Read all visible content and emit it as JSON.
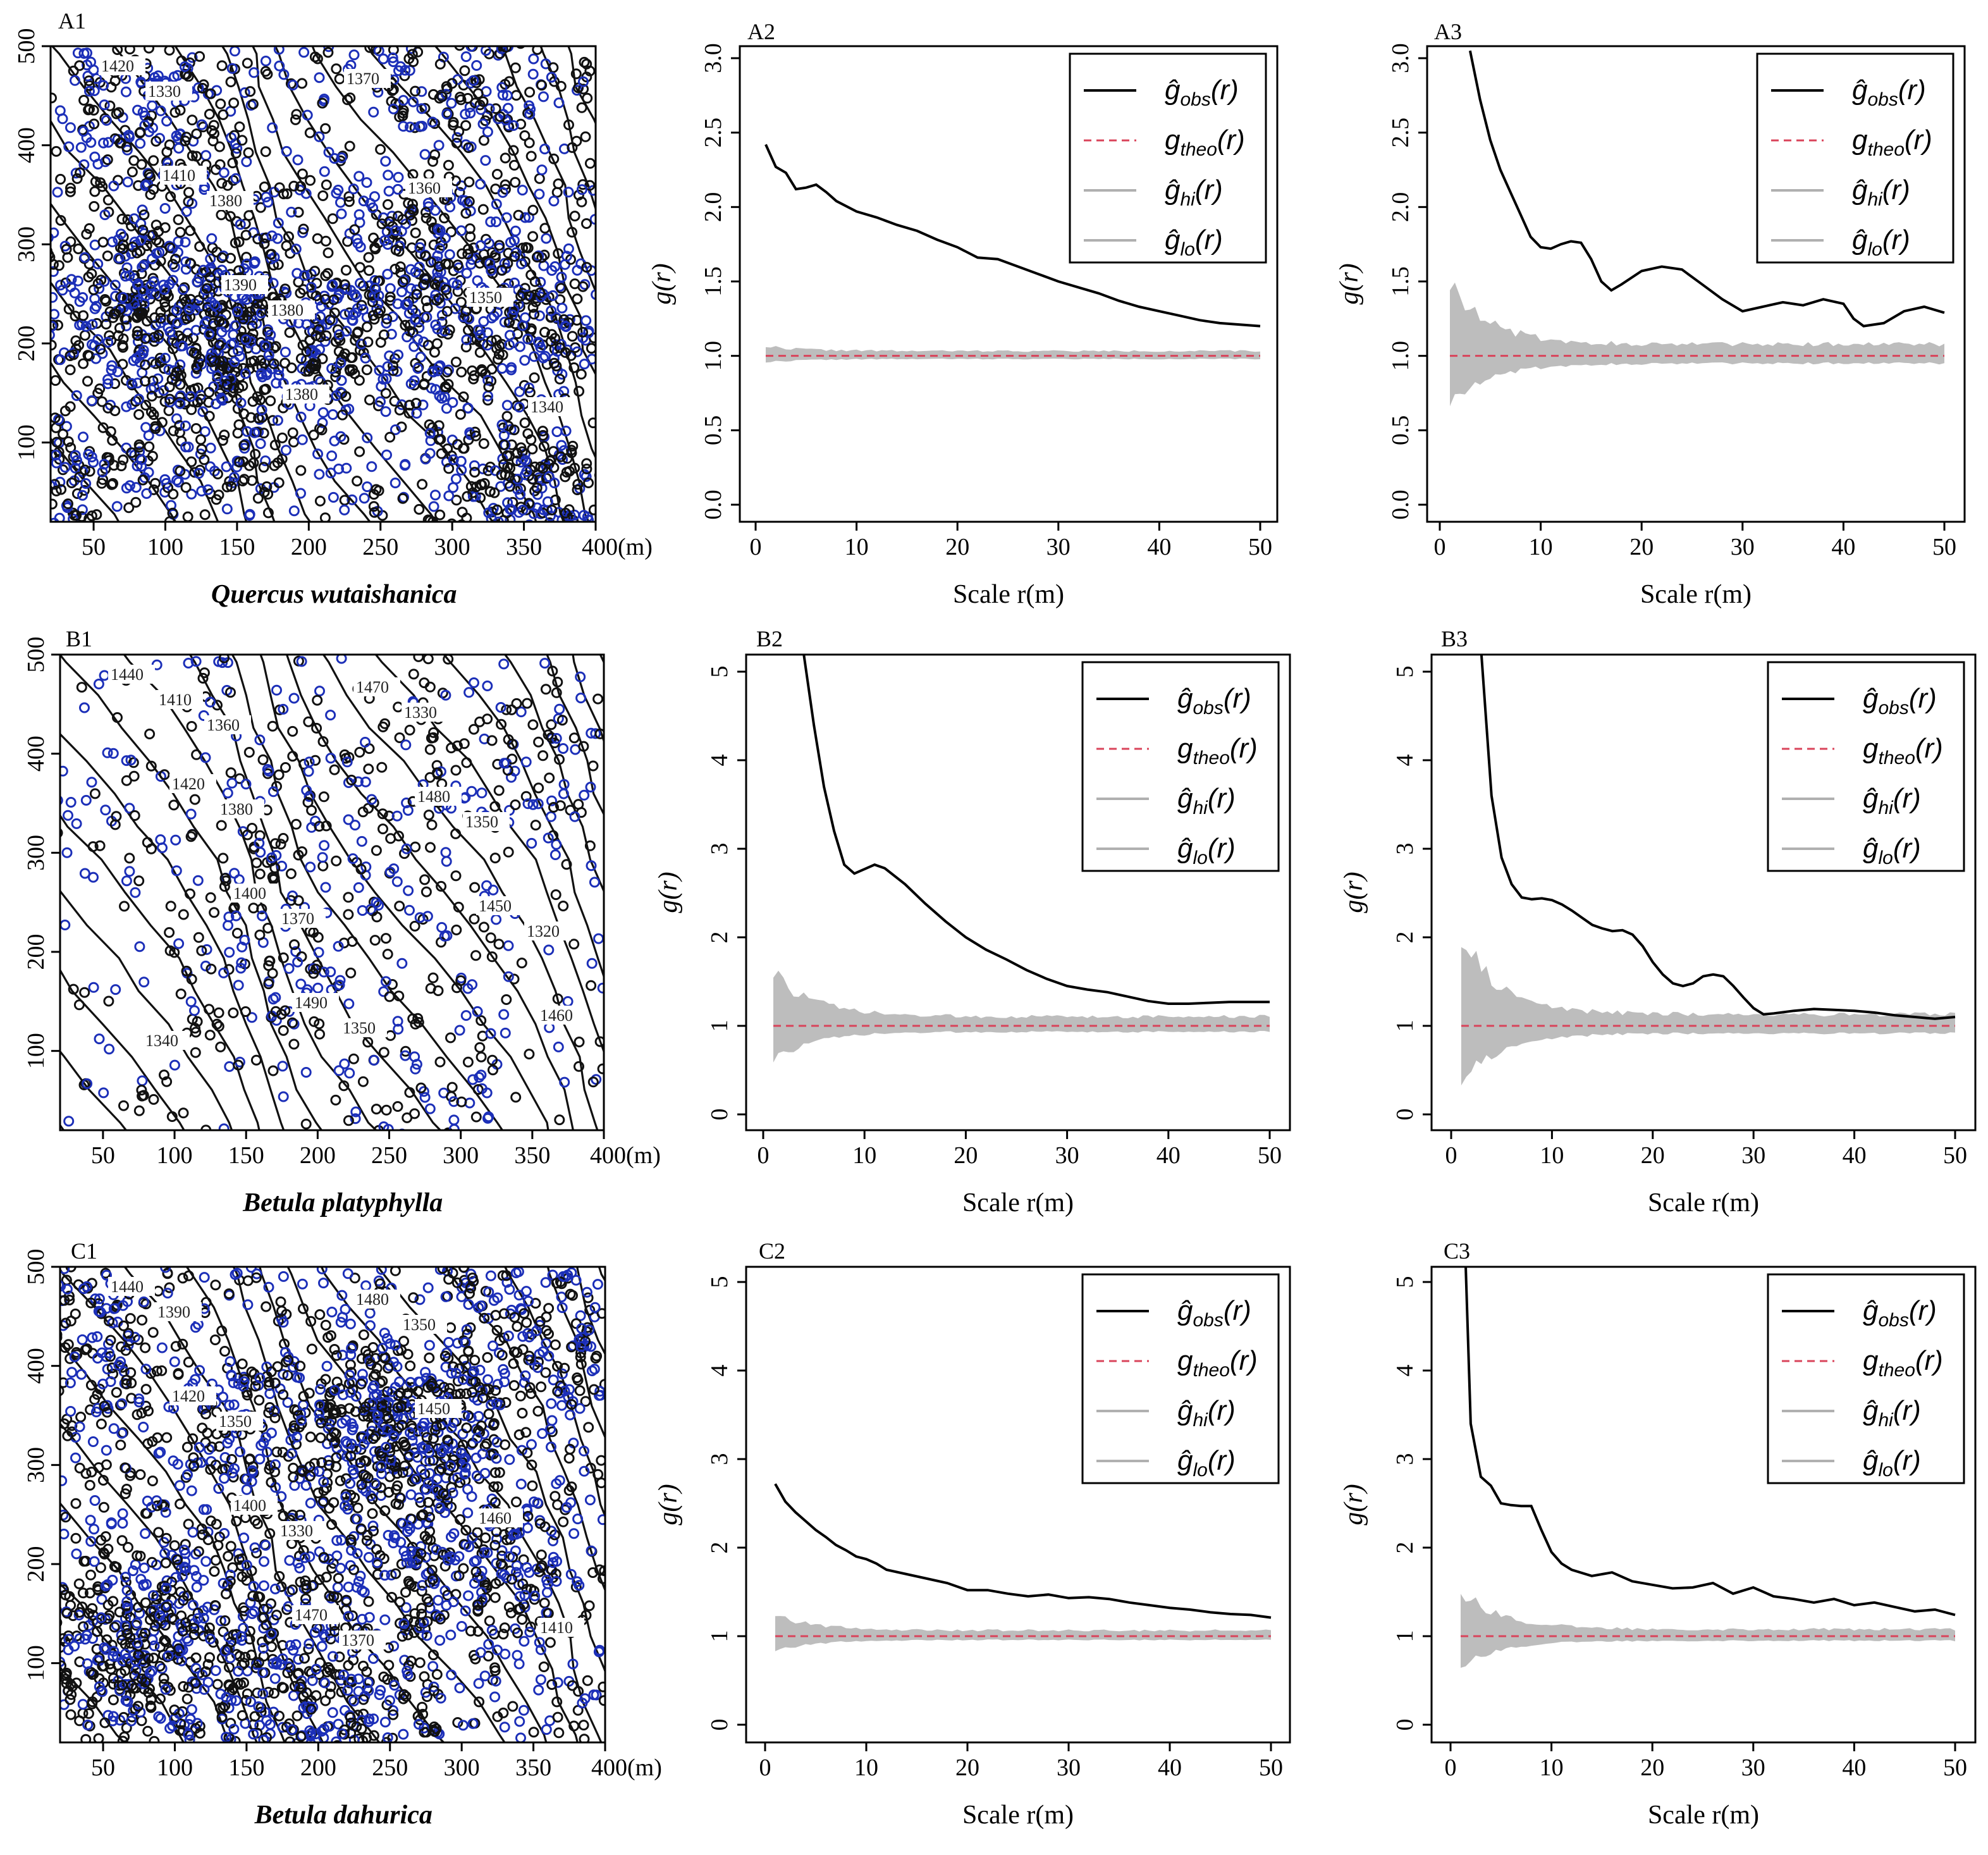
{
  "chart_data": [
    {
      "panel": "A1",
      "type": "scatter",
      "species": "Quercus wutaishanica",
      "x_ticks": [
        "50",
        "100",
        "150",
        "200",
        "250",
        "300",
        "350",
        "400(m)"
      ],
      "y_ticks": [
        "100",
        "200",
        "300",
        "400",
        "500"
      ],
      "xlim": [
        20,
        400
      ],
      "ylim": [
        20,
        500
      ],
      "contour_labels": [
        "1420",
        "1410",
        "1390",
        "1380",
        "1370",
        "1360",
        "1350",
        "1340",
        "1330",
        "1380",
        "1380"
      ],
      "point_colors": {
        "black": "#111111",
        "blue": "#1c2fb8"
      },
      "density": "high"
    },
    {
      "panel": "A2",
      "type": "line",
      "xlabel": "Scale r(m)",
      "ylabel": "g(r)",
      "xlim": [
        0,
        50
      ],
      "ylim": [
        0,
        3
      ],
      "x_ticks": [
        "0",
        "10",
        "20",
        "30",
        "40",
        "50"
      ],
      "y_ticks": [
        "0.0",
        "0.5",
        "1.0",
        "1.5",
        "2.0",
        "2.5",
        "3.0"
      ],
      "r": [
        1,
        2,
        3,
        4,
        5,
        6,
        7,
        8,
        10,
        12,
        14,
        16,
        18,
        20,
        22,
        24,
        26,
        28,
        30,
        32,
        34,
        36,
        38,
        40,
        42,
        44,
        46,
        48,
        50
      ],
      "g_obs": [
        2.42,
        2.27,
        2.23,
        2.12,
        2.13,
        2.15,
        2.1,
        2.04,
        1.97,
        1.93,
        1.88,
        1.84,
        1.78,
        1.73,
        1.66,
        1.65,
        1.6,
        1.55,
        1.5,
        1.46,
        1.42,
        1.37,
        1.33,
        1.3,
        1.27,
        1.24,
        1.22,
        1.21,
        1.2
      ],
      "env_width": 0.1,
      "env_min_width": 0.05,
      "theo": 1,
      "legend": [
        "ĝ",
        "obs",
        "g",
        "theo",
        "ĝ",
        "hi",
        "ĝ",
        "lo",
        "(r)"
      ]
    },
    {
      "panel": "A3",
      "type": "line",
      "xlabel": "Scale r(m)",
      "ylabel": "g(r)",
      "xlim": [
        0,
        50
      ],
      "ylim": [
        0,
        3
      ],
      "x_ticks": [
        "0",
        "10",
        "20",
        "30",
        "40",
        "50"
      ],
      "y_ticks": [
        "0.0",
        "0.5",
        "1.0",
        "1.5",
        "2.0",
        "2.5",
        "3.0"
      ],
      "r": [
        3,
        4,
        5,
        6,
        7,
        8,
        9,
        10,
        11,
        12,
        13,
        14,
        15,
        16,
        17,
        18,
        20,
        22,
        24,
        26,
        28,
        30,
        32,
        34,
        36,
        38,
        40,
        41,
        42,
        44,
        46,
        48,
        50
      ],
      "g_obs": [
        3.05,
        2.72,
        2.45,
        2.25,
        2.1,
        1.95,
        1.8,
        1.73,
        1.72,
        1.75,
        1.77,
        1.76,
        1.65,
        1.5,
        1.44,
        1.48,
        1.57,
        1.6,
        1.58,
        1.48,
        1.38,
        1.3,
        1.33,
        1.36,
        1.34,
        1.38,
        1.35,
        1.25,
        1.2,
        1.22,
        1.3,
        1.33,
        1.29
      ],
      "env_width": 0.75,
      "env_min_width": 0.12,
      "theo": 1,
      "legend": [
        "ĝ",
        "obs",
        "g",
        "theo",
        "ĝ",
        "hi",
        "ĝ",
        "lo",
        "(r)"
      ]
    },
    {
      "panel": "B1",
      "type": "scatter",
      "species": "Betula platyphylla",
      "x_ticks": [
        "50",
        "100",
        "150",
        "200",
        "250",
        "300",
        "350",
        "400(m)"
      ],
      "y_ticks": [
        "100",
        "200",
        "300",
        "400",
        "500"
      ],
      "xlim": [
        20,
        400
      ],
      "ylim": [
        20,
        500
      ],
      "contour_labels": [
        "1440",
        "1420",
        "1400",
        "1490",
        "1470",
        "1480",
        "1450",
        "1460",
        "1410",
        "1380",
        "1370",
        "1350",
        "1330",
        "1350",
        "1320",
        "1340",
        "1360"
      ],
      "point_colors": {
        "black": "#111111",
        "blue": "#1c2fb8"
      },
      "density": "low"
    },
    {
      "panel": "B2",
      "type": "line",
      "xlabel": "Scale r(m)",
      "ylabel": "g(r)",
      "xlim": [
        0,
        50
      ],
      "ylim": [
        0,
        5
      ],
      "x_ticks": [
        "0",
        "10",
        "20",
        "30",
        "40",
        "50"
      ],
      "y_ticks": [
        "0",
        "1",
        "2",
        "3",
        "4",
        "5"
      ],
      "r": [
        4,
        5,
        6,
        7,
        8,
        9,
        10,
        11,
        12,
        14,
        16,
        18,
        20,
        22,
        24,
        26,
        28,
        30,
        32,
        34,
        36,
        38,
        40,
        42,
        44,
        46,
        48,
        50
      ],
      "g_obs": [
        5.2,
        4.4,
        3.7,
        3.2,
        2.82,
        2.72,
        2.77,
        2.82,
        2.78,
        2.6,
        2.38,
        2.18,
        2.0,
        1.86,
        1.75,
        1.63,
        1.53,
        1.45,
        1.41,
        1.38,
        1.33,
        1.28,
        1.25,
        1.25,
        1.26,
        1.27,
        1.27,
        1.27
      ],
      "env_width": 0.92,
      "env_min_width": 0.16,
      "theo": 1,
      "legend": [
        "ĝ",
        "obs",
        "g",
        "theo",
        "ĝ",
        "hi",
        "ĝ",
        "lo",
        "(r)"
      ]
    },
    {
      "panel": "B3",
      "type": "line",
      "xlabel": "Scale r(m)",
      "ylabel": "g(r)",
      "xlim": [
        0,
        50
      ],
      "ylim": [
        0,
        5
      ],
      "x_ticks": [
        "0",
        "10",
        "20",
        "30",
        "40",
        "50"
      ],
      "y_ticks": [
        "0",
        "1",
        "2",
        "3",
        "4",
        "5"
      ],
      "r": [
        3,
        4,
        5,
        6,
        7,
        8,
        9,
        10,
        11,
        12,
        13,
        14,
        15,
        16,
        17,
        18,
        19,
        20,
        21,
        22,
        23,
        24,
        25,
        26,
        27,
        28,
        29,
        30,
        31,
        32,
        34,
        36,
        38,
        40,
        42,
        44,
        46,
        48,
        50
      ],
      "g_obs": [
        5.2,
        3.6,
        2.9,
        2.6,
        2.45,
        2.43,
        2.44,
        2.42,
        2.37,
        2.3,
        2.22,
        2.14,
        2.1,
        2.07,
        2.08,
        2.03,
        1.9,
        1.72,
        1.58,
        1.48,
        1.45,
        1.48,
        1.56,
        1.58,
        1.56,
        1.45,
        1.32,
        1.2,
        1.13,
        1.14,
        1.17,
        1.19,
        1.18,
        1.17,
        1.15,
        1.12,
        1.1,
        1.08,
        1.1
      ],
      "env_width": 1.5,
      "env_min_width": 0.2,
      "theo": 1,
      "legend": [
        "ĝ",
        "obs",
        "g",
        "theo",
        "ĝ",
        "hi",
        "ĝ",
        "lo",
        "(r)"
      ]
    },
    {
      "panel": "C1",
      "type": "scatter",
      "species": "Betula dahurica",
      "x_ticks": [
        "50",
        "100",
        "150",
        "200",
        "250",
        "300",
        "350",
        "400(m)"
      ],
      "y_ticks": [
        "100",
        "200",
        "300",
        "400",
        "500"
      ],
      "xlim": [
        20,
        400
      ],
      "ylim": [
        20,
        500
      ],
      "contour_labels": [
        "1440",
        "1420",
        "1400",
        "1470",
        "1480",
        "1450",
        "1460",
        "1410",
        "1390",
        "1350",
        "1330",
        "1370",
        "1350"
      ],
      "point_colors": {
        "black": "#111111",
        "blue": "#1c2fb8"
      },
      "density": "high"
    },
    {
      "panel": "C2",
      "type": "line",
      "xlabel": "Scale r(m)",
      "ylabel": "g(r)",
      "xlim": [
        0,
        50
      ],
      "ylim": [
        0,
        5
      ],
      "x_ticks": [
        "0",
        "10",
        "20",
        "30",
        "40",
        "50"
      ],
      "y_ticks": [
        "0",
        "1",
        "2",
        "3",
        "4",
        "5"
      ],
      "r": [
        1,
        2,
        3,
        4,
        5,
        6,
        7,
        8,
        9,
        10,
        11,
        12,
        14,
        16,
        18,
        20,
        22,
        24,
        26,
        28,
        30,
        32,
        34,
        36,
        38,
        40,
        42,
        44,
        46,
        48,
        50
      ],
      "g_obs": [
        2.72,
        2.52,
        2.4,
        2.3,
        2.2,
        2.12,
        2.03,
        1.97,
        1.9,
        1.87,
        1.82,
        1.75,
        1.7,
        1.65,
        1.6,
        1.52,
        1.52,
        1.48,
        1.45,
        1.47,
        1.43,
        1.44,
        1.42,
        1.38,
        1.35,
        1.32,
        1.3,
        1.27,
        1.25,
        1.24,
        1.21
      ],
      "env_width": 0.38,
      "env_min_width": 0.1,
      "theo": 1,
      "legend": [
        "ĝ",
        "obs",
        "g",
        "theo",
        "ĝ",
        "hi",
        "ĝ",
        "lo",
        "(r)"
      ]
    },
    {
      "panel": "C3",
      "type": "line",
      "xlabel": "Scale r(m)",
      "ylabel": "g(r)",
      "xlim": [
        0,
        50
      ],
      "ylim": [
        0,
        5
      ],
      "x_ticks": [
        "0",
        "10",
        "20",
        "30",
        "40",
        "50"
      ],
      "y_ticks": [
        "0",
        "1",
        "2",
        "3",
        "4",
        "5"
      ],
      "r": [
        1.5,
        2,
        3,
        4,
        5,
        6,
        7,
        8,
        9,
        10,
        11,
        12,
        14,
        16,
        18,
        20,
        22,
        24,
        26,
        28,
        30,
        32,
        34,
        36,
        38,
        40,
        42,
        44,
        46,
        48,
        50
      ],
      "g_obs": [
        5.2,
        3.4,
        2.8,
        2.7,
        2.5,
        2.48,
        2.47,
        2.47,
        2.2,
        1.95,
        1.82,
        1.75,
        1.68,
        1.72,
        1.62,
        1.58,
        1.54,
        1.55,
        1.6,
        1.48,
        1.55,
        1.45,
        1.42,
        1.38,
        1.42,
        1.35,
        1.38,
        1.33,
        1.28,
        1.3,
        1.24
      ],
      "env_width": 0.8,
      "env_min_width": 0.12,
      "theo": 1,
      "legend": [
        "ĝ",
        "obs",
        "g",
        "theo",
        "ĝ",
        "hi",
        "ĝ",
        "lo",
        "(r)"
      ]
    }
  ],
  "colors": {
    "obs_line": "#000000",
    "theo_line": "#d9435a",
    "envelope": "#bdbdbd",
    "envelope_legend": "#b0b0b0"
  }
}
